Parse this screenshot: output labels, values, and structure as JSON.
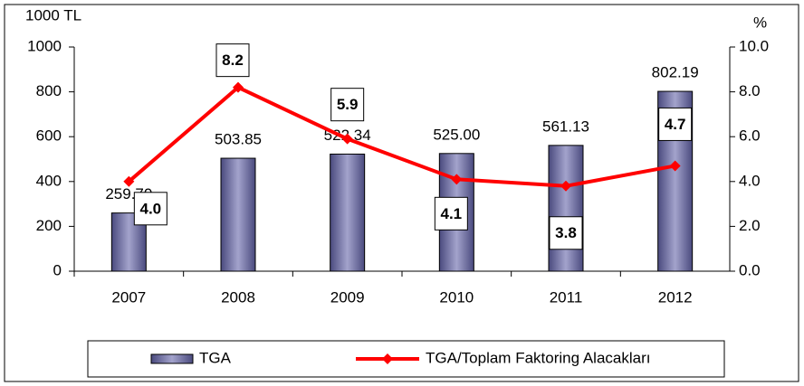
{
  "chart_data": {
    "type": "bar-line",
    "y_label": "1000 TL",
    "y2_label": "%",
    "categories": [
      "2007",
      "2008",
      "2009",
      "2010",
      "2011",
      "2012"
    ],
    "series": [
      {
        "name": "TGA",
        "type": "bar",
        "color": "#7b7bab",
        "values": [
          259.7,
          503.85,
          522.34,
          525,
          561.13,
          802.19
        ],
        "value_labels": [
          "259.70",
          "503.85",
          "522.34",
          "525.00",
          "561.13",
          "802.19"
        ]
      },
      {
        "name": "TGA/Toplam Faktoring Alacakları",
        "type": "line",
        "axis": "y2",
        "color": "#ff0000",
        "values": [
          4.0,
          8.2,
          5.9,
          4.1,
          3.8,
          4.7
        ],
        "value_labels": [
          "4.0",
          "8.2",
          "5.9",
          "4.1",
          "3.8",
          "4.7"
        ]
      }
    ],
    "ylim": [
      0,
      1000
    ],
    "yticks": [
      0,
      200,
      400,
      600,
      800,
      1000
    ],
    "y2lim": [
      0,
      10
    ],
    "y2ticks": [
      {
        "value": 0,
        "label": "0.0"
      },
      {
        "value": 2,
        "label": "2.0"
      },
      {
        "value": 4,
        "label": "4.0"
      },
      {
        "value": 6,
        "label": "6.0"
      },
      {
        "value": 8,
        "label": "8.0"
      },
      {
        "value": 10,
        "label": "10.0"
      }
    ],
    "legend": "bottom"
  }
}
